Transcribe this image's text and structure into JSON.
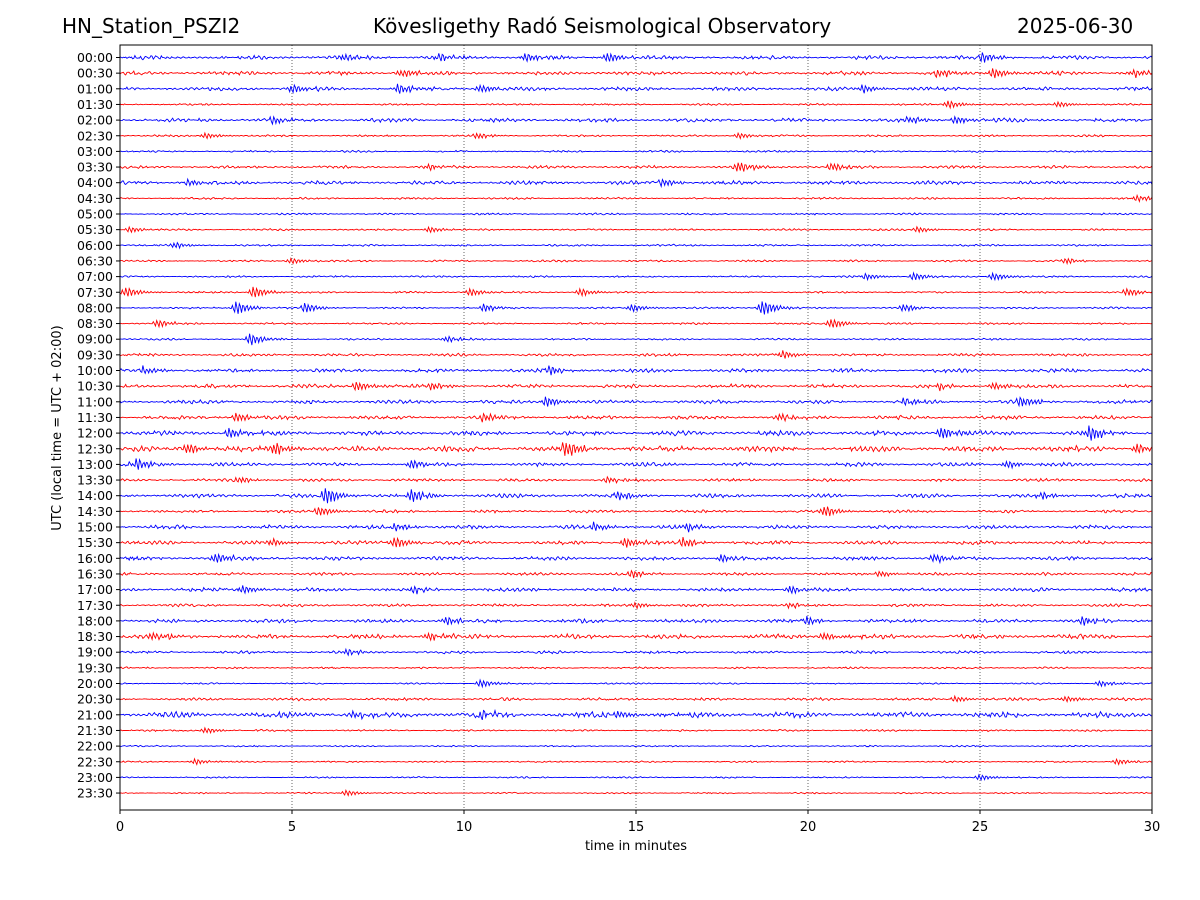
{
  "header": {
    "station": "HN_Station_PSZI2",
    "observatory": "Kövesligethy Radó Seismological Observatory",
    "date": "2025-06-30"
  },
  "colors": {
    "even_trace": "#0000ff",
    "odd_trace": "#ff0000",
    "grid": "#000000"
  },
  "chart_data": {
    "type": "line",
    "title": "Kövesligethy Radó Seismological Observatory",
    "xlabel": "time in minutes",
    "ylabel": "UTC (local time = UTC + 02:00)",
    "xlim": [
      0,
      30
    ],
    "xticks": [
      0,
      5,
      10,
      15,
      20,
      25,
      30
    ],
    "grid": "vertical dotted lines at x ticks",
    "rows": [
      {
        "label": "00:00",
        "amp": 2,
        "events": [
          {
            "t": 6.5,
            "a": 4
          },
          {
            "t": 9.3,
            "a": 4
          },
          {
            "t": 11.8,
            "a": 4
          },
          {
            "t": 14.2,
            "a": 5
          },
          {
            "t": 25.1,
            "a": 5
          }
        ]
      },
      {
        "label": "00:30",
        "amp": 2,
        "events": [
          {
            "t": 8.2,
            "a": 4
          },
          {
            "t": 23.8,
            "a": 4
          },
          {
            "t": 25.4,
            "a": 5
          },
          {
            "t": 29.5,
            "a": 4
          }
        ]
      },
      {
        "label": "01:00",
        "amp": 2,
        "events": [
          {
            "t": 5.0,
            "a": 4
          },
          {
            "t": 8.1,
            "a": 5
          },
          {
            "t": 10.5,
            "a": 4
          },
          {
            "t": 21.6,
            "a": 4
          }
        ]
      },
      {
        "label": "01:30",
        "amp": 1,
        "events": [
          {
            "t": 24.1,
            "a": 4
          },
          {
            "t": 27.3,
            "a": 3
          }
        ]
      },
      {
        "label": "02:00",
        "amp": 2,
        "events": [
          {
            "t": 4.5,
            "a": 4
          },
          {
            "t": 23.0,
            "a": 4
          },
          {
            "t": 24.3,
            "a": 4
          }
        ]
      },
      {
        "label": "02:30",
        "amp": 1,
        "events": [
          {
            "t": 2.5,
            "a": 3
          },
          {
            "t": 10.4,
            "a": 3
          },
          {
            "t": 18.0,
            "a": 3
          }
        ]
      },
      {
        "label": "03:00",
        "amp": 1,
        "events": []
      },
      {
        "label": "03:30",
        "amp": 1.5,
        "events": [
          {
            "t": 9.0,
            "a": 3
          },
          {
            "t": 18.0,
            "a": 6
          },
          {
            "t": 20.7,
            "a": 4
          }
        ]
      },
      {
        "label": "04:00",
        "amp": 2,
        "events": [
          {
            "t": 2.0,
            "a": 3
          },
          {
            "t": 15.8,
            "a": 4
          }
        ]
      },
      {
        "label": "04:30",
        "amp": 1,
        "events": [
          {
            "t": 29.6,
            "a": 3
          }
        ]
      },
      {
        "label": "05:00",
        "amp": 1,
        "events": []
      },
      {
        "label": "05:30",
        "amp": 1,
        "events": [
          {
            "t": 0.3,
            "a": 3
          },
          {
            "t": 9.0,
            "a": 3
          },
          {
            "t": 23.2,
            "a": 3
          }
        ]
      },
      {
        "label": "06:00",
        "amp": 1,
        "events": [
          {
            "t": 1.6,
            "a": 3
          }
        ]
      },
      {
        "label": "06:30",
        "amp": 1,
        "events": [
          {
            "t": 5.0,
            "a": 3
          },
          {
            "t": 27.5,
            "a": 3
          }
        ]
      },
      {
        "label": "07:00",
        "amp": 1,
        "events": [
          {
            "t": 21.7,
            "a": 3
          },
          {
            "t": 23.1,
            "a": 4
          },
          {
            "t": 25.4,
            "a": 4
          }
        ]
      },
      {
        "label": "07:30",
        "amp": 1,
        "events": [
          {
            "t": 0.2,
            "a": 5
          },
          {
            "t": 3.9,
            "a": 6
          },
          {
            "t": 10.2,
            "a": 4
          },
          {
            "t": 13.4,
            "a": 4
          },
          {
            "t": 29.3,
            "a": 4
          }
        ]
      },
      {
        "label": "08:00",
        "amp": 1,
        "events": [
          {
            "t": 3.4,
            "a": 7
          },
          {
            "t": 5.4,
            "a": 5
          },
          {
            "t": 10.6,
            "a": 4
          },
          {
            "t": 14.9,
            "a": 4
          },
          {
            "t": 18.7,
            "a": 8
          },
          {
            "t": 22.8,
            "a": 4
          }
        ]
      },
      {
        "label": "08:30",
        "amp": 1,
        "events": [
          {
            "t": 1.1,
            "a": 4
          },
          {
            "t": 20.7,
            "a": 5
          }
        ]
      },
      {
        "label": "09:00",
        "amp": 1,
        "events": [
          {
            "t": 3.8,
            "a": 6
          },
          {
            "t": 9.5,
            "a": 3
          }
        ]
      },
      {
        "label": "09:30",
        "amp": 1.5,
        "events": [
          {
            "t": 19.3,
            "a": 4
          }
        ]
      },
      {
        "label": "10:00",
        "amp": 2,
        "events": [
          {
            "t": 0.7,
            "a": 4
          },
          {
            "t": 12.5,
            "a": 4
          }
        ]
      },
      {
        "label": "10:30",
        "amp": 2,
        "events": [
          {
            "t": 6.9,
            "a": 5
          },
          {
            "t": 9.1,
            "a": 4
          },
          {
            "t": 23.8,
            "a": 4
          },
          {
            "t": 25.4,
            "a": 4
          }
        ]
      },
      {
        "label": "11:00",
        "amp": 2,
        "events": [
          {
            "t": 12.4,
            "a": 5
          },
          {
            "t": 22.8,
            "a": 4
          },
          {
            "t": 26.2,
            "a": 6
          }
        ]
      },
      {
        "label": "11:30",
        "amp": 2,
        "events": [
          {
            "t": 3.4,
            "a": 5
          },
          {
            "t": 10.6,
            "a": 5
          },
          {
            "t": 19.2,
            "a": 4
          }
        ]
      },
      {
        "label": "12:00",
        "amp": 2.5,
        "events": [
          {
            "t": 3.2,
            "a": 5
          },
          {
            "t": 23.9,
            "a": 6
          },
          {
            "t": 28.2,
            "a": 8
          }
        ]
      },
      {
        "label": "12:30",
        "amp": 3,
        "events": [
          {
            "t": 2.0,
            "a": 5
          },
          {
            "t": 4.5,
            "a": 6
          },
          {
            "t": 13.0,
            "a": 8
          },
          {
            "t": 29.6,
            "a": 5
          }
        ]
      },
      {
        "label": "13:00",
        "amp": 2,
        "events": [
          {
            "t": 0.5,
            "a": 6
          },
          {
            "t": 8.5,
            "a": 5
          },
          {
            "t": 25.8,
            "a": 4
          }
        ]
      },
      {
        "label": "13:30",
        "amp": 1.5,
        "events": [
          {
            "t": 3.5,
            "a": 3
          },
          {
            "t": 14.2,
            "a": 3
          }
        ]
      },
      {
        "label": "14:00",
        "amp": 2,
        "events": [
          {
            "t": 6.0,
            "a": 9
          },
          {
            "t": 8.5,
            "a": 7
          },
          {
            "t": 14.5,
            "a": 5
          },
          {
            "t": 26.8,
            "a": 4
          }
        ]
      },
      {
        "label": "14:30",
        "amp": 1.5,
        "events": [
          {
            "t": 5.8,
            "a": 5
          },
          {
            "t": 20.5,
            "a": 6
          }
        ]
      },
      {
        "label": "15:00",
        "amp": 2,
        "events": [
          {
            "t": 8.0,
            "a": 4
          },
          {
            "t": 13.8,
            "a": 4
          },
          {
            "t": 16.5,
            "a": 4
          }
        ]
      },
      {
        "label": "15:30",
        "amp": 2,
        "events": [
          {
            "t": 4.4,
            "a": 4
          },
          {
            "t": 8.0,
            "a": 6
          },
          {
            "t": 14.7,
            "a": 5
          },
          {
            "t": 16.4,
            "a": 5
          }
        ]
      },
      {
        "label": "16:00",
        "amp": 2,
        "events": [
          {
            "t": 2.8,
            "a": 5
          },
          {
            "t": 17.5,
            "a": 4
          },
          {
            "t": 23.7,
            "a": 4
          }
        ]
      },
      {
        "label": "16:30",
        "amp": 1.5,
        "events": [
          {
            "t": 14.9,
            "a": 4
          },
          {
            "t": 22.1,
            "a": 3
          }
        ]
      },
      {
        "label": "17:00",
        "amp": 2,
        "events": [
          {
            "t": 3.6,
            "a": 4
          },
          {
            "t": 8.5,
            "a": 4
          },
          {
            "t": 19.5,
            "a": 4
          }
        ]
      },
      {
        "label": "17:30",
        "amp": 1.5,
        "events": [
          {
            "t": 15.0,
            "a": 3
          },
          {
            "t": 19.5,
            "a": 3
          }
        ]
      },
      {
        "label": "18:00",
        "amp": 2,
        "events": [
          {
            "t": 9.5,
            "a": 4
          },
          {
            "t": 20.0,
            "a": 4
          },
          {
            "t": 28.0,
            "a": 4
          }
        ]
      },
      {
        "label": "18:30",
        "amp": 2.5,
        "events": [
          {
            "t": 1.0,
            "a": 4
          },
          {
            "t": 9.0,
            "a": 4
          },
          {
            "t": 20.5,
            "a": 4
          }
        ]
      },
      {
        "label": "19:00",
        "amp": 1.5,
        "events": [
          {
            "t": 6.6,
            "a": 3
          }
        ]
      },
      {
        "label": "19:30",
        "amp": 1,
        "events": []
      },
      {
        "label": "20:00",
        "amp": 0.8,
        "events": [
          {
            "t": 10.5,
            "a": 4
          },
          {
            "t": 28.5,
            "a": 3
          }
        ]
      },
      {
        "label": "20:30",
        "amp": 1.5,
        "events": [
          {
            "t": 24.3,
            "a": 3
          },
          {
            "t": 27.5,
            "a": 3
          }
        ]
      },
      {
        "label": "21:00",
        "amp": 3,
        "events": [
          {
            "t": 6.8,
            "a": 4
          },
          {
            "t": 10.5,
            "a": 4
          },
          {
            "t": 14.5,
            "a": 4
          }
        ]
      },
      {
        "label": "21:30",
        "amp": 1,
        "events": [
          {
            "t": 2.5,
            "a": 3
          }
        ]
      },
      {
        "label": "22:00",
        "amp": 0.8,
        "events": []
      },
      {
        "label": "22:30",
        "amp": 0.8,
        "events": [
          {
            "t": 2.2,
            "a": 3
          },
          {
            "t": 29.0,
            "a": 3
          }
        ]
      },
      {
        "label": "23:00",
        "amp": 0.8,
        "events": [
          {
            "t": 25.0,
            "a": 3
          }
        ]
      },
      {
        "label": "23:30",
        "amp": 0.8,
        "events": [
          {
            "t": 6.6,
            "a": 3
          }
        ]
      }
    ]
  }
}
